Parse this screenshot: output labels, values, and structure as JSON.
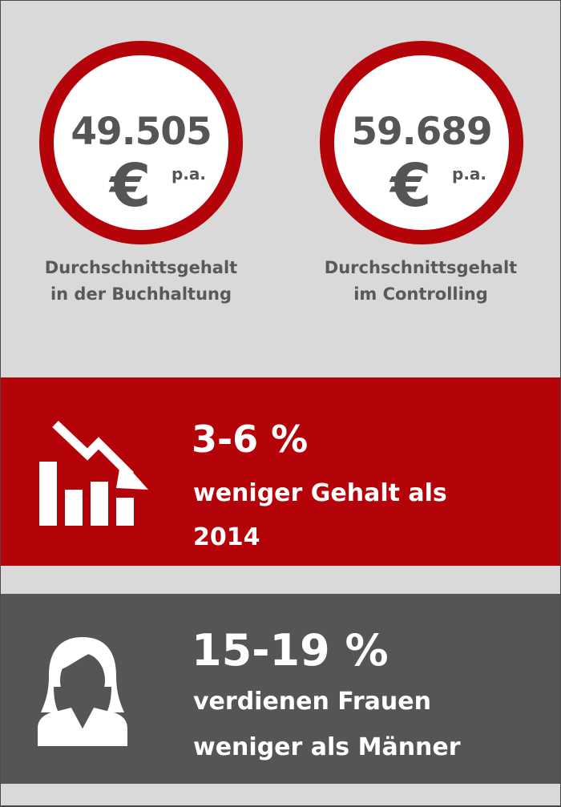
{
  "stats": [
    {
      "amount": "49.505",
      "currency": "€",
      "period": "p.a.",
      "caption_line1": "Durchschnittsgehalt",
      "caption_line2": "in der Buchhaltung"
    },
    {
      "amount": "59.689",
      "currency": "€",
      "period": "p.a.",
      "caption_line1": "Durchschnittsgehalt",
      "caption_line2": "im Controlling"
    }
  ],
  "banners": [
    {
      "headline": "3-6 %",
      "line1": "weniger Gehalt als",
      "line2": "2014",
      "icon": "declining-bar-chart-icon",
      "background": "#b50409"
    },
    {
      "headline": "15-19 %",
      "line1": "verdienen Frauen",
      "line2": "weniger als Männer",
      "icon": "woman-icon",
      "background": "#555555"
    }
  ],
  "colors": {
    "accent_red": "#b50409",
    "dark_grey": "#555555",
    "page_background": "#d9d9d9",
    "text_white": "#ffffff"
  }
}
